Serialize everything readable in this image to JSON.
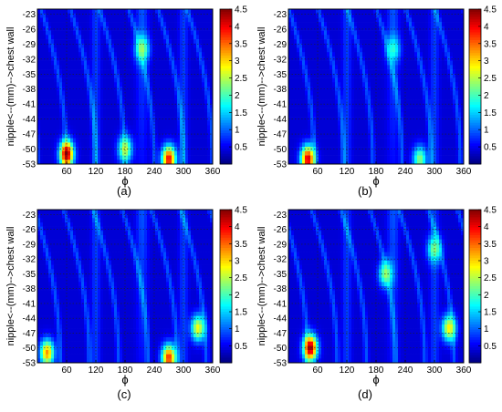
{
  "chart_data": [
    {
      "type": "heatmap",
      "panel_label": "(a)",
      "xlabel": "ϕ",
      "ylabel": "nipple<--(mm)-->chest wall",
      "x_ticks": [
        "60",
        "120",
        "180",
        "240",
        "300",
        "360"
      ],
      "y_ticks": [
        "-23",
        "-26",
        "-29",
        "-32",
        "-35",
        "-38",
        "-41",
        "-44",
        "-47",
        "-50",
        "-53"
      ],
      "xlim": [
        0,
        360
      ],
      "ylim": [
        -53,
        -22
      ],
      "colorbar_ticks": [
        "0.5",
        "1",
        "1.5",
        "2",
        "2.5",
        "3",
        "3.5",
        "4",
        "4.5"
      ],
      "colorbar_range": [
        0,
        4.5
      ],
      "colormap": "jet",
      "grid": true,
      "hotspots": [
        {
          "phi": 60,
          "depth": -51,
          "value": 4.5
        },
        {
          "phi": 270,
          "depth": -52,
          "value": 4.0
        },
        {
          "phi": 180,
          "depth": -50,
          "value": 2.6
        },
        {
          "phi": 215,
          "depth": -30,
          "value": 2.4
        }
      ]
    },
    {
      "type": "heatmap",
      "panel_label": "(b)",
      "xlabel": "ϕ",
      "ylabel": "nipple<--(mm)-->chest wall",
      "x_ticks": [
        "60",
        "120",
        "180",
        "240",
        "300",
        "360"
      ],
      "y_ticks": [
        "-23",
        "-26",
        "-29",
        "-32",
        "-35",
        "-38",
        "-41",
        "-44",
        "-47",
        "-50",
        "-53"
      ],
      "xlim": [
        0,
        360
      ],
      "ylim": [
        -53,
        -22
      ],
      "colorbar_ticks": [
        "0.5",
        "1",
        "1.5",
        "2",
        "2.5",
        "3",
        "3.5",
        "4",
        "4.5"
      ],
      "colorbar_range": [
        0,
        4.5
      ],
      "colormap": "jet",
      "grid": true,
      "hotspots": [
        {
          "phi": 40,
          "depth": -52,
          "value": 4.2
        },
        {
          "phi": 270,
          "depth": -52,
          "value": 2.3
        },
        {
          "phi": 215,
          "depth": -30,
          "value": 1.9
        }
      ]
    },
    {
      "type": "heatmap",
      "panel_label": "(c)",
      "xlabel": "ϕ",
      "ylabel": "nipple<--(mm)-->chest wall",
      "x_ticks": [
        "60",
        "120",
        "180",
        "240",
        "300",
        "360"
      ],
      "y_ticks": [
        "-23",
        "-26",
        "-29",
        "-32",
        "-35",
        "-38",
        "-41",
        "-44",
        "-47",
        "-50",
        "-53"
      ],
      "xlim": [
        0,
        360
      ],
      "ylim": [
        -53,
        -22
      ],
      "colorbar_ticks": [
        "0.5",
        "1",
        "1.5",
        "2",
        "2.5",
        "3",
        "3.5",
        "4",
        "4.5"
      ],
      "colorbar_range": [
        0,
        4.5
      ],
      "colormap": "jet",
      "grid": true,
      "hotspots": [
        {
          "phi": 20,
          "depth": -51,
          "value": 3.3
        },
        {
          "phi": 270,
          "depth": -52,
          "value": 3.8
        },
        {
          "phi": 330,
          "depth": -46,
          "value": 2.8
        }
      ]
    },
    {
      "type": "heatmap",
      "panel_label": "(d)",
      "xlabel": "ϕ",
      "ylabel": "nipple<--(mm)-->chest wall",
      "x_ticks": [
        "60",
        "120",
        "180",
        "240",
        "300",
        "360"
      ],
      "y_ticks": [
        "-23",
        "-26",
        "-29",
        "-32",
        "-35",
        "-38",
        "-41",
        "-44",
        "-47",
        "-50",
        "-53"
      ],
      "xlim": [
        0,
        360
      ],
      "ylim": [
        -53,
        -22
      ],
      "colorbar_ticks": [
        "0.5",
        "1",
        "1.5",
        "2",
        "2.5",
        "3",
        "3.5",
        "4",
        "4.5"
      ],
      "colorbar_range": [
        0,
        4.5
      ],
      "colormap": "jet",
      "grid": true,
      "hotspots": [
        {
          "phi": 45,
          "depth": -50,
          "value": 4.5
        },
        {
          "phi": 200,
          "depth": -35,
          "value": 2.4
        },
        {
          "phi": 300,
          "depth": -30,
          "value": 2.3
        },
        {
          "phi": 330,
          "depth": -46,
          "value": 2.9
        }
      ]
    }
  ]
}
